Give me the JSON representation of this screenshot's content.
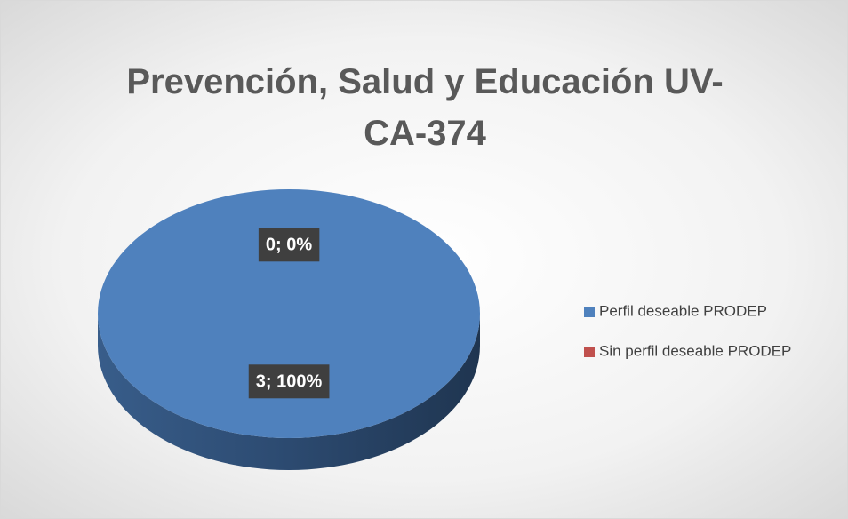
{
  "chart_data": {
    "type": "pie",
    "title": "Prevención, Salud y Educación UV-CA-374",
    "categories": [
      "Perfil deseable PRODEP",
      "Sin perfil deseable PRODEP"
    ],
    "values": [
      3,
      0
    ],
    "value_labels": [
      "3; 100%",
      "0; 0%"
    ],
    "colors": [
      "#4f81bd",
      "#c0504d"
    ],
    "legend": "right"
  }
}
